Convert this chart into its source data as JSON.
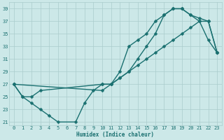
{
  "title": "",
  "xlabel": "Humidex (Indice chaleur)",
  "ylabel": "",
  "xlim": [
    -0.5,
    23.5
  ],
  "ylim": [
    20.5,
    40.0
  ],
  "yticks": [
    21,
    23,
    25,
    27,
    29,
    31,
    33,
    35,
    37,
    39
  ],
  "xticks": [
    0,
    1,
    2,
    3,
    4,
    5,
    6,
    7,
    8,
    9,
    10,
    11,
    12,
    13,
    14,
    15,
    16,
    17,
    18,
    19,
    20,
    21,
    22,
    23
  ],
  "bg_color": "#cce8e8",
  "grid_color": "#aacccc",
  "line_color": "#1a7070",
  "line_width": 1.0,
  "marker": "D",
  "marker_size": 2.5,
  "series": [
    {
      "x": [
        0,
        1,
        2,
        3,
        4,
        5,
        7,
        8,
        9,
        10,
        11,
        12,
        13,
        14,
        15,
        16,
        17,
        18,
        19,
        20,
        21,
        22,
        23
      ],
      "y": [
        27,
        25,
        24,
        23,
        22,
        21,
        21,
        24,
        26,
        27,
        27,
        29,
        33,
        34,
        35,
        37,
        38,
        39,
        39,
        38,
        37,
        34,
        32
      ]
    },
    {
      "x": [
        0,
        1,
        2,
        3,
        10,
        11,
        12,
        13,
        14,
        15,
        16,
        17,
        18,
        19,
        20,
        21,
        22,
        23
      ],
      "y": [
        27,
        25,
        25,
        26,
        27,
        27,
        28,
        29,
        30,
        31,
        32,
        33,
        34,
        35,
        36,
        37,
        37,
        32
      ]
    },
    {
      "x": [
        0,
        10,
        11,
        12,
        13,
        14,
        15,
        16,
        17,
        18,
        19,
        20,
        21,
        22,
        23
      ],
      "y": [
        27,
        26,
        27,
        28,
        29,
        31,
        33,
        35,
        38,
        39,
        39,
        38,
        37.5,
        37,
        32
      ]
    }
  ]
}
